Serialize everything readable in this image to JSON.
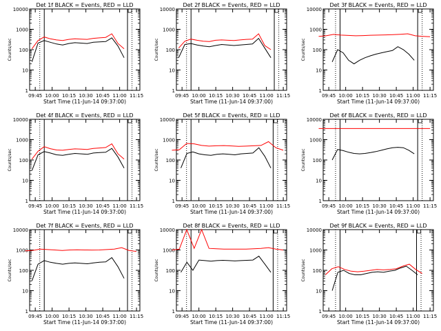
{
  "figure": {
    "ylabel": "Counts/sec",
    "xlabel": "Start Time (11-Jun-14 09:37:00)",
    "yticks": [
      "1",
      "10",
      "100",
      "1000",
      "10000"
    ],
    "colors": {
      "events": "#000000",
      "lld": "#ff0000",
      "axes": "#000000"
    }
  },
  "chart_data": [
    {
      "type": "line",
      "title": "Det 1f BLACK = Events, RED = LLD",
      "xticks": [
        "09:45",
        "10:00",
        "10:15",
        "10:30",
        "10:45",
        "11:00",
        "11:15"
      ],
      "yscale": "log",
      "ylim": [
        1,
        10000
      ],
      "series": [
        {
          "name": "Events",
          "color": "#000000",
          "start": "09:42",
          "end": "11:04",
          "values": [
            25,
            210,
            280,
            230,
            190,
            170,
            200,
            220,
            210,
            200,
            230,
            240,
            250,
            380,
            150,
            40
          ]
        },
        {
          "name": "LLD",
          "color": "#ff0000",
          "start": "09:42",
          "end": "11:04",
          "values": [
            110,
            280,
            420,
            340,
            300,
            280,
            320,
            340,
            330,
            320,
            360,
            380,
            400,
            600,
            200,
            110
          ]
        }
      ],
      "markers_solid": [
        "09:53",
        "11:07"
      ],
      "markers_dotted": [
        "09:49",
        "11:11"
      ]
    },
    {
      "type": "line",
      "title": "Det 2f BLACK = Events, RED = LLD",
      "xticks": [
        "09:45",
        "10:00",
        "10:15",
        "10:30",
        "10:45",
        "11:00",
        "11:15"
      ],
      "yscale": "log",
      "ylim": [
        1,
        10000
      ],
      "series": [
        {
          "name": "Events",
          "color": "#000000",
          "start": "09:42",
          "end": "11:04",
          "values": [
            40,
            180,
            200,
            170,
            150,
            140,
            160,
            180,
            170,
            160,
            170,
            180,
            190,
            360,
            120,
            40
          ]
        },
        {
          "name": "LLD",
          "color": "#ff0000",
          "start": "09:42",
          "end": "11:04",
          "values": [
            120,
            260,
            330,
            290,
            260,
            250,
            290,
            300,
            290,
            280,
            300,
            320,
            330,
            600,
            160,
            100
          ]
        }
      ],
      "markers_solid": [
        "09:53",
        "11:07"
      ],
      "markers_dotted": [
        "09:49",
        "11:11"
      ]
    },
    {
      "type": "line",
      "title": "Det 3f BLACK = Events, RED = LLD",
      "xticks": [
        "09:45",
        "10:00",
        "10:15",
        "10:30",
        "10:45",
        "11:00",
        "11:15"
      ],
      "yscale": "log",
      "ylim": [
        1,
        10000
      ],
      "series": [
        {
          "name": "Events",
          "color": "#000000",
          "start": "09:48",
          "end": "11:01",
          "values": [
            25,
            100,
            70,
            30,
            20,
            30,
            40,
            50,
            60,
            70,
            80,
            90,
            140,
            100,
            60,
            30
          ]
        },
        {
          "name": "LLD",
          "color": "#ff0000",
          "start": "09:36",
          "end": "11:15",
          "values": [
            450,
            480,
            560,
            520,
            500,
            480,
            490,
            510,
            520,
            530,
            550,
            570,
            600,
            480,
            450,
            430
          ]
        }
      ],
      "markers_solid": [
        "09:55",
        "11:04"
      ],
      "markers_dotted": [
        "09:51",
        "11:08"
      ]
    },
    {
      "type": "line",
      "title": "Det 4f BLACK = Events, RED = LLD",
      "xticks": [
        "09:45",
        "10:00",
        "10:15",
        "10:30",
        "10:45",
        "11:00",
        "11:15"
      ],
      "yscale": "log",
      "ylim": [
        1,
        10000
      ],
      "series": [
        {
          "name": "Events",
          "color": "#000000",
          "start": "09:42",
          "end": "11:04",
          "values": [
            30,
            180,
            260,
            220,
            180,
            170,
            190,
            210,
            200,
            190,
            220,
            230,
            240,
            370,
            140,
            40
          ]
        },
        {
          "name": "LLD",
          "color": "#ff0000",
          "start": "09:42",
          "end": "11:04",
          "values": [
            110,
            270,
            450,
            360,
            310,
            300,
            330,
            350,
            340,
            330,
            370,
            390,
            410,
            620,
            200,
            110
          ]
        }
      ],
      "markers_solid": [
        "09:53",
        "11:07"
      ],
      "markers_dotted": [
        "09:49",
        "11:11"
      ]
    },
    {
      "type": "line",
      "title": "Det 5f BLACK = Events, RED = LLD",
      "xticks": [
        "09:45",
        "10:00",
        "10:15",
        "10:30",
        "10:45",
        "11:00",
        "11:15"
      ],
      "yscale": "log",
      "ylim": [
        1,
        10000
      ],
      "series": [
        {
          "name": "Events",
          "color": "#000000",
          "start": "09:44",
          "end": "11:04",
          "values": [
            40,
            210,
            250,
            200,
            180,
            170,
            190,
            200,
            190,
            180,
            200,
            210,
            220,
            400,
            150,
            40
          ]
        },
        {
          "name": "LLD",
          "color": "#ff0000",
          "start": "09:36",
          "end": "11:15",
          "values": [
            300,
            320,
            650,
            620,
            520,
            480,
            500,
            510,
            490,
            470,
            480,
            500,
            520,
            800,
            400,
            300
          ]
        }
      ],
      "markers_solid": [
        "09:53",
        "11:06"
      ],
      "markers_dotted": [
        "09:49",
        "11:10"
      ]
    },
    {
      "type": "line",
      "title": "Det 6f BLACK = Events, RED = LLD",
      "xticks": [
        "09:45",
        "10:00",
        "10:15",
        "10:30",
        "10:45",
        "11:00",
        "11:15"
      ],
      "yscale": "log",
      "ylim": [
        1,
        10000
      ],
      "series": [
        {
          "name": "Events",
          "color": "#000000",
          "start": "09:48",
          "end": "11:01",
          "values": [
            100,
            330,
            290,
            240,
            210,
            200,
            210,
            230,
            260,
            300,
            350,
            400,
            420,
            400,
            300,
            200
          ]
        },
        {
          "name": "LLD",
          "color": "#ff0000",
          "start": "09:36",
          "end": "11:15",
          "values": [
            3500,
            3500,
            3500,
            3500,
            3500,
            3500,
            3500,
            3500,
            3500,
            3500,
            3500,
            3500,
            3500,
            3500,
            3500,
            3500
          ]
        }
      ],
      "markers_solid": [
        "09:55",
        "11:04"
      ],
      "markers_dotted": [
        "09:51",
        "11:08"
      ]
    },
    {
      "type": "line",
      "title": "Det 7f BLACK = Events, RED = LLD",
      "xticks": [
        "09:45",
        "10:00",
        "10:15",
        "10:30",
        "10:45",
        "11:00",
        "11:15"
      ],
      "yscale": "log",
      "ylim": [
        1,
        10000
      ],
      "series": [
        {
          "name": "Events",
          "color": "#000000",
          "start": "09:42",
          "end": "11:04",
          "values": [
            30,
            200,
            300,
            250,
            220,
            200,
            220,
            230,
            220,
            210,
            230,
            250,
            260,
            420,
            150,
            40
          ]
        },
        {
          "name": "LLD",
          "color": "#ff0000",
          "start": "09:36",
          "end": "11:15",
          "values": [
            900,
            950,
            1100,
            1050,
            1000,
            950,
            1000,
            1020,
            1000,
            990,
            1000,
            1050,
            1100,
            1300,
            950,
            850
          ]
        }
      ],
      "markers_solid": [
        "09:53",
        "11:07"
      ],
      "markers_dotted": [
        "09:49",
        "11:11"
      ]
    },
    {
      "type": "line",
      "title": "Det 8f BLACK = Events, RED = LLD",
      "xticks": [
        "09:45",
        "10:00",
        "10:15",
        "10:30",
        "10:45",
        "11:00",
        "11:15"
      ],
      "yscale": "log",
      "ylim": [
        1,
        10000
      ],
      "series": [
        {
          "name": "Events",
          "color": "#000000",
          "start": "09:44",
          "end": "11:04",
          "values": [
            80,
            250,
            100,
            320,
            300,
            280,
            300,
            310,
            300,
            290,
            300,
            310,
            320,
            500,
            200,
            80
          ]
        },
        {
          "name": "LLD",
          "color": "#ff0000",
          "start": "09:36",
          "end": "11:15",
          "values": [
            1000,
            1100,
            10000,
            1200,
            10000,
            1200,
            1150,
            1100,
            1100,
            1100,
            1100,
            1150,
            1200,
            1300,
            1100,
            1000
          ]
        }
      ],
      "markers_solid": [
        "09:53",
        "11:06"
      ],
      "markers_dotted": [
        "09:49",
        "11:10"
      ]
    },
    {
      "type": "line",
      "title": "Det 9f BLACK = Events, RED = LLD",
      "xticks": [
        "09:45",
        "10:00",
        "10:15",
        "10:30",
        "10:45",
        "11:00",
        "11:15"
      ],
      "yscale": "log",
      "ylim": [
        1,
        10000
      ],
      "series": [
        {
          "name": "Events",
          "color": "#000000",
          "start": "09:48",
          "end": "11:04",
          "values": [
            10,
            80,
            100,
            70,
            60,
            60,
            70,
            80,
            85,
            80,
            90,
            100,
            130,
            160,
            100,
            60
          ]
        },
        {
          "name": "LLD",
          "color": "#ff0000",
          "start": "09:42",
          "end": "11:08",
          "values": [
            60,
            120,
            150,
            110,
            90,
            85,
            90,
            100,
            110,
            105,
            110,
            120,
            160,
            200,
            110,
            70
          ]
        }
      ],
      "markers_solid": [
        "09:55",
        "11:03"
      ],
      "markers_dotted": [
        "09:51",
        "11:07"
      ]
    }
  ]
}
